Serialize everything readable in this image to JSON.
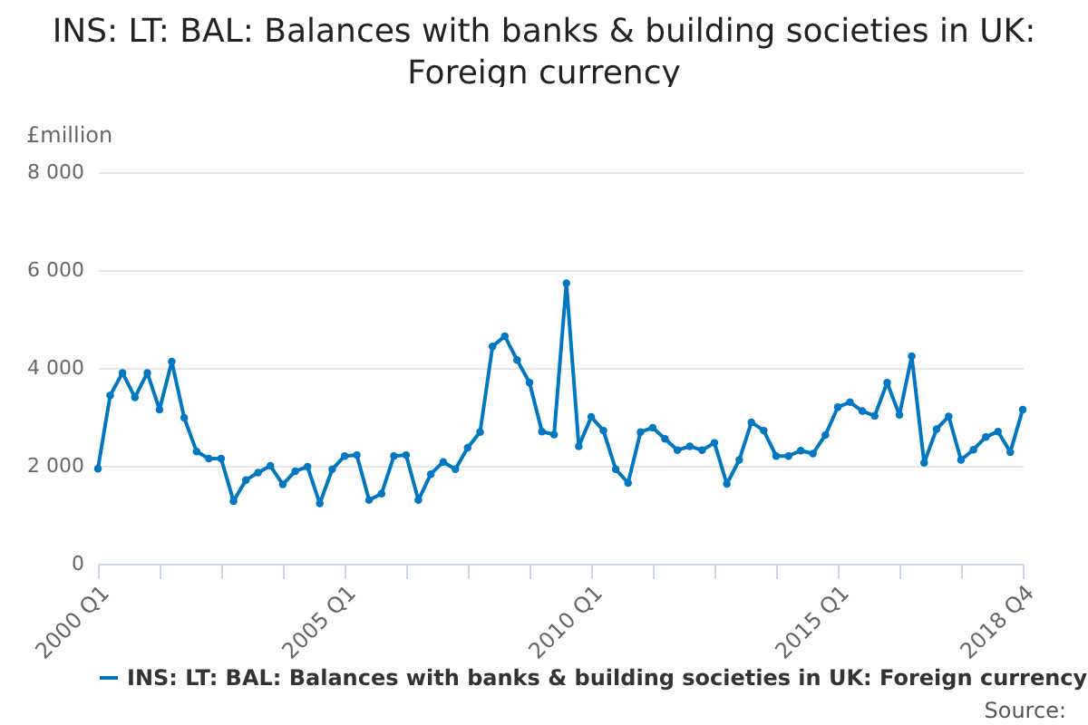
{
  "chart_data": {
    "type": "line",
    "title": "INS: LT: BAL: Balances with banks & building societies in UK: Foreign currency",
    "ylabel": "£million",
    "x": [
      "2000-01",
      "2000-04",
      "2000-07",
      "2000-10",
      "2001-01",
      "2001-04",
      "2001-07",
      "2001-10",
      "2002-01",
      "2002-04",
      "2002-07",
      "2002-10",
      "2003-01",
      "2003-04",
      "2003-07",
      "2003-10",
      "2004-01",
      "2004-04",
      "2004-07",
      "2004-10",
      "2005-01",
      "2005-04",
      "2005-07",
      "2005-10",
      "2006-01",
      "2006-04",
      "2006-07",
      "2006-10",
      "2007-01",
      "2007-04",
      "2007-07",
      "2007-10",
      "2008-01",
      "2008-04",
      "2008-07",
      "2008-10",
      "2009-01",
      "2009-04",
      "2009-07",
      "2009-10",
      "2010-01",
      "2010-04",
      "2010-07",
      "2010-10",
      "2011-01",
      "2011-04",
      "2011-07",
      "2011-10",
      "2012-01",
      "2012-04",
      "2012-07",
      "2012-10",
      "2013-01",
      "2013-04",
      "2013-07",
      "2013-10",
      "2014-01",
      "2014-04",
      "2014-07",
      "2014-10",
      "2015-01",
      "2015-04",
      "2015-07",
      "2015-10",
      "2016-01",
      "2016-04",
      "2016-07",
      "2016-10",
      "2017-01",
      "2017-04",
      "2017-07",
      "2017-10",
      "2018-01",
      "2018-04",
      "2018-07",
      "2018-10"
    ],
    "series": [
      {
        "name": "INS: LT: BAL: Balances with banks & building societies in UK: Foreign currency",
        "color": "#0077c0",
        "values": [
          1940,
          3440,
          3900,
          3400,
          3900,
          3150,
          4130,
          2980,
          2290,
          2150,
          2150,
          1280,
          1710,
          1860,
          2000,
          1620,
          1890,
          1980,
          1230,
          1930,
          2200,
          2220,
          1300,
          1430,
          2200,
          2220,
          1300,
          1830,
          2080,
          1930,
          2370,
          2690,
          4440,
          4650,
          4160,
          3700,
          2700,
          2640,
          5730,
          2400,
          3000,
          2720,
          1930,
          1650,
          2690,
          2780,
          2550,
          2320,
          2400,
          2320,
          2470,
          1630,
          2120,
          2890,
          2720,
          2200,
          2200,
          2310,
          2250,
          2630,
          3200,
          3300,
          3120,
          3020,
          3700,
          3040,
          4240,
          2060,
          2750,
          3010,
          2120,
          2330,
          2590,
          2700,
          2280,
          3150
        ]
      }
    ],
    "xlim": [
      "2000-01",
      "2018-10"
    ],
    "xticks": [
      {
        "value": "2000-01",
        "label": "2000 Q1"
      },
      {
        "value": "2001-04",
        "label": null
      },
      {
        "value": "2002-07",
        "label": null
      },
      {
        "value": "2003-10",
        "label": null
      },
      {
        "value": "2005-01",
        "label": "2005 Q1"
      },
      {
        "value": "2006-04",
        "label": null
      },
      {
        "value": "2007-07",
        "label": null
      },
      {
        "value": "2008-10",
        "label": null
      },
      {
        "value": "2010-01",
        "label": "2010 Q1"
      },
      {
        "value": "2011-04",
        "label": null
      },
      {
        "value": "2012-07",
        "label": null
      },
      {
        "value": "2013-10",
        "label": null
      },
      {
        "value": "2015-01",
        "label": "2015 Q1"
      },
      {
        "value": "2016-04",
        "label": null
      },
      {
        "value": "2017-07",
        "label": null
      },
      {
        "value": "2018-10",
        "label": "2018 Q4"
      }
    ],
    "ylim": [
      0,
      8000
    ],
    "yticks": [
      0,
      {
        "value": 2000,
        "label": "2 000"
      },
      {
        "value": 4000,
        "label": "4 000"
      },
      {
        "value": 6000,
        "label": "6 000"
      },
      {
        "value": 8000,
        "label": "8 000"
      }
    ],
    "grid": "y",
    "legend": "bottom",
    "marker": "circle",
    "line_style": "solid",
    "annotations": [
      "Source:"
    ]
  }
}
